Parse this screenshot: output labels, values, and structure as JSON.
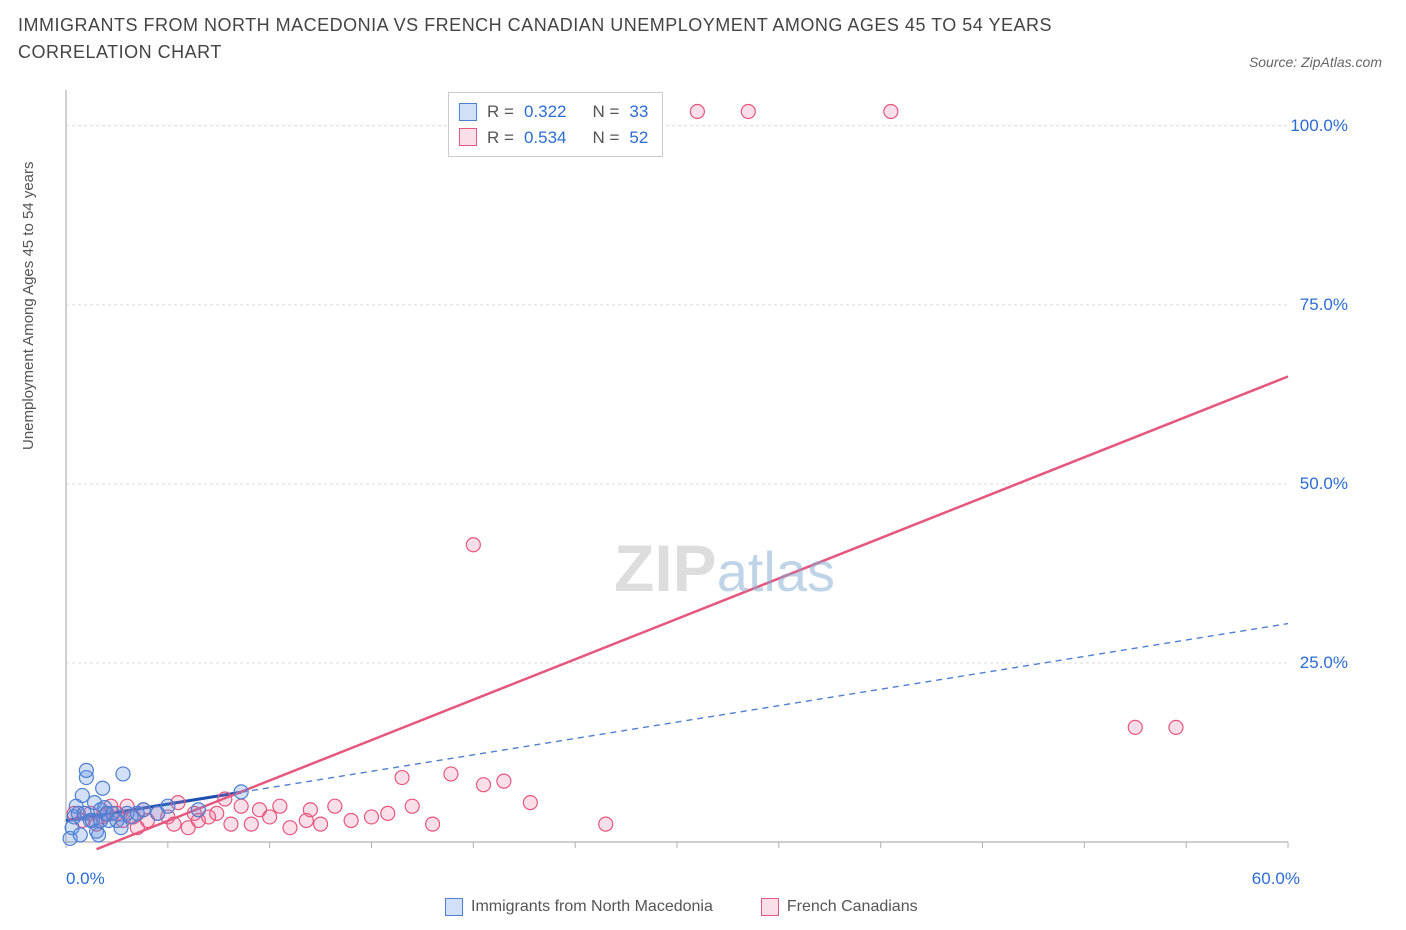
{
  "title": "IMMIGRANTS FROM NORTH MACEDONIA VS FRENCH CANADIAN UNEMPLOYMENT AMONG AGES 45 TO 54 YEARS CORRELATION CHART",
  "source": "Source: ZipAtlas.com",
  "watermark_a": "ZIP",
  "watermark_b": "atlas",
  "chart": {
    "type": "scatter",
    "ylabel": "Unemployment Among Ages 45 to 54 years",
    "xlim": [
      0,
      60
    ],
    "ylim": [
      0,
      105
    ],
    "xtick_step": 5,
    "ytick_step": 25,
    "xtick_labels": [
      "0.0%",
      "",
      "",
      "",
      "",
      "",
      "",
      "",
      "",
      "",
      "",
      "",
      "60.0%"
    ],
    "ytick_labels": [
      "",
      "25.0%",
      "50.0%",
      "75.0%",
      "100.0%"
    ],
    "grid_color": "#d9d9d9",
    "axis_color": "#b0b0b0",
    "background_color": "#ffffff",
    "marker_radius": 7,
    "marker_stroke_width": 1.2,
    "series": [
      {
        "name": "Immigrants from North Macedonia",
        "color_fill": "rgba(94,144,227,0.28)",
        "color_stroke": "#4f7fd1",
        "stats": {
          "R": "0.322",
          "N": "33"
        },
        "regression": {
          "x1": 0,
          "y1": 3.0,
          "x2": 60,
          "y2": 30.5,
          "style": "dash-solid"
        },
        "points": [
          [
            0.2,
            0.5
          ],
          [
            0.3,
            2.0
          ],
          [
            0.4,
            3.5
          ],
          [
            0.5,
            5.0
          ],
          [
            0.6,
            4.0
          ],
          [
            0.7,
            1.0
          ],
          [
            0.8,
            6.5
          ],
          [
            0.9,
            4.0
          ],
          [
            1.0,
            9.0
          ],
          [
            1.0,
            10.0
          ],
          [
            1.2,
            3.0
          ],
          [
            1.3,
            3.0
          ],
          [
            1.4,
            5.5
          ],
          [
            1.5,
            1.5
          ],
          [
            1.6,
            1.0
          ],
          [
            1.7,
            4.5
          ],
          [
            1.7,
            3.0
          ],
          [
            1.8,
            7.5
          ],
          [
            1.9,
            4.8
          ],
          [
            2.0,
            4.0
          ],
          [
            2.1,
            3.0
          ],
          [
            2.3,
            4.0
          ],
          [
            2.5,
            3.0
          ],
          [
            2.7,
            2.0
          ],
          [
            2.8,
            9.5
          ],
          [
            3.0,
            4.0
          ],
          [
            3.2,
            3.5
          ],
          [
            3.5,
            4.0
          ],
          [
            3.8,
            4.5
          ],
          [
            4.5,
            4.0
          ],
          [
            5.0,
            5.0
          ],
          [
            6.5,
            4.5
          ],
          [
            8.6,
            7.0
          ]
        ]
      },
      {
        "name": "French Canadians",
        "color_fill": "rgba(235,110,150,0.22)",
        "color_stroke": "#e5577f",
        "stats": {
          "R": "0.534",
          "N": "52"
        },
        "regression": {
          "x1": 1.5,
          "y1": -1.0,
          "x2": 60,
          "y2": 65.0,
          "style": "solid"
        },
        "points": [
          [
            0.4,
            4.0
          ],
          [
            0.8,
            3.0
          ],
          [
            1.2,
            4.0
          ],
          [
            1.5,
            2.5
          ],
          [
            1.8,
            3.5
          ],
          [
            2.0,
            3.8
          ],
          [
            2.2,
            5.0
          ],
          [
            2.5,
            4.0
          ],
          [
            2.8,
            3.0
          ],
          [
            3.0,
            5.0
          ],
          [
            3.3,
            3.5
          ],
          [
            3.5,
            2.0
          ],
          [
            3.8,
            4.5
          ],
          [
            4.0,
            3.0
          ],
          [
            4.5,
            4.0
          ],
          [
            5.0,
            3.5
          ],
          [
            5.3,
            2.5
          ],
          [
            5.5,
            5.5
          ],
          [
            6.0,
            2.0
          ],
          [
            6.3,
            4.0
          ],
          [
            6.5,
            3.0
          ],
          [
            7.0,
            3.5
          ],
          [
            7.4,
            4.0
          ],
          [
            7.8,
            6.0
          ],
          [
            8.1,
            2.5
          ],
          [
            8.6,
            5.0
          ],
          [
            9.1,
            2.5
          ],
          [
            9.5,
            4.5
          ],
          [
            10.0,
            3.5
          ],
          [
            10.5,
            5.0
          ],
          [
            11.0,
            2.0
          ],
          [
            11.8,
            3.0
          ],
          [
            12.0,
            4.5
          ],
          [
            12.5,
            2.5
          ],
          [
            13.2,
            5.0
          ],
          [
            14.0,
            3.0
          ],
          [
            15.0,
            3.5
          ],
          [
            15.8,
            4.0
          ],
          [
            16.5,
            9.0
          ],
          [
            17.0,
            5.0
          ],
          [
            18.0,
            2.5
          ],
          [
            18.9,
            9.5
          ],
          [
            20.5,
            8.0
          ],
          [
            21.5,
            8.5
          ],
          [
            22.8,
            5.5
          ],
          [
            26.5,
            2.5
          ],
          [
            20.0,
            41.5
          ],
          [
            31.0,
            102.0
          ],
          [
            33.5,
            102.0
          ],
          [
            40.5,
            102.0
          ],
          [
            52.5,
            16.0
          ],
          [
            54.5,
            16.0
          ]
        ]
      }
    ],
    "stat_box": {
      "r_label": "R =",
      "n_label": "N ="
    },
    "legend_items": [
      "Immigrants from North Macedonia",
      "French Canadians"
    ]
  }
}
